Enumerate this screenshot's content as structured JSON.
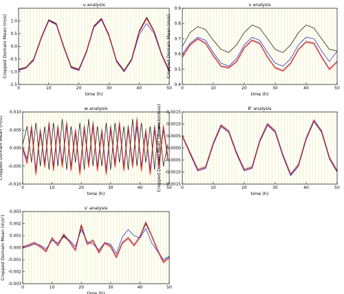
{
  "figure": {
    "x_grid_step": 1,
    "line_colors": [
      "#000000",
      "#3333cc",
      "#cc2222",
      "#cc2222",
      "#cc2222"
    ],
    "band_colors": [
      "#c8c8c8",
      "#ff9999"
    ],
    "grid_color": "#e8e890"
  },
  "chart_data": [
    {
      "type": "line",
      "title": "u analysis",
      "xlabel": "time (h)",
      "ylabel": "Cropped Domain Mean (m/s)",
      "xlim": [
        0,
        50
      ],
      "ylim": [
        -1.5,
        1.5
      ],
      "xticks": [
        "0",
        "10",
        "20",
        "30",
        "40",
        "50"
      ],
      "yticks": [
        "-1.5",
        "-1.0",
        "-0.5",
        "0.0",
        "0.5",
        "1.0"
      ],
      "series": [
        {
          "x": [
            0,
            2.5,
            5,
            7.5,
            10,
            12.5,
            15,
            17.5,
            20,
            22.5,
            25,
            27.5,
            30,
            32.5,
            35,
            37.5,
            40,
            42.5,
            45,
            47.5,
            50
          ],
          "values": [
            -0.9,
            -0.82,
            -0.5,
            0.35,
            1.05,
            0.9,
            0.0,
            -0.8,
            -0.9,
            -0.2,
            0.8,
            1.1,
            0.45,
            -0.55,
            -0.95,
            -0.5,
            0.6,
            1.15,
            0.6,
            -0.3,
            -0.95
          ]
        },
        {
          "x": [
            0,
            2.5,
            5,
            7.5,
            10,
            12.5,
            15,
            17.5,
            20,
            22.5,
            25,
            27.5,
            30,
            32.5,
            35,
            37.5,
            40,
            42.5,
            45,
            47.5,
            50
          ],
          "values": [
            -0.95,
            -0.85,
            -0.55,
            0.3,
            1.0,
            0.85,
            -0.05,
            -0.85,
            -0.95,
            -0.25,
            0.75,
            1.05,
            0.4,
            -0.6,
            -1.0,
            -0.55,
            0.45,
            0.9,
            0.5,
            -0.35,
            -1.0
          ]
        },
        {
          "x": [
            0,
            2.5,
            5,
            7.5,
            10,
            12.5,
            15,
            17.5,
            20,
            22.5,
            25,
            27.5,
            30,
            32.5,
            35,
            37.5,
            40,
            42.5,
            45,
            47.5,
            50
          ],
          "values": [
            -0.92,
            -0.83,
            -0.52,
            0.33,
            1.03,
            0.88,
            -0.02,
            -0.82,
            -0.92,
            -0.22,
            0.78,
            1.08,
            0.43,
            -0.57,
            -0.97,
            -0.52,
            0.56,
            1.1,
            0.58,
            -0.32,
            -0.97
          ]
        }
      ]
    },
    {
      "type": "line",
      "title": "v analysis",
      "xlabel": "time (h)",
      "ylabel": "Cropped Domain Mean (m/s)",
      "xlim": [
        0,
        50
      ],
      "ylim": [
        0.4,
        0.9
      ],
      "xticks": [
        "0",
        "10",
        "20",
        "30",
        "40",
        "50"
      ],
      "yticks": [
        "0.4",
        "0.5",
        "0.6",
        "0.7",
        "0.8",
        "0.9"
      ],
      "series": [
        {
          "x": [
            0,
            2.5,
            5,
            7.5,
            10,
            12.5,
            15,
            17.5,
            20,
            22.5,
            25,
            27.5,
            30,
            32.5,
            35,
            37.5,
            40,
            42.5,
            45,
            47.5,
            50
          ],
          "values": [
            0.65,
            0.74,
            0.78,
            0.76,
            0.69,
            0.63,
            0.61,
            0.66,
            0.74,
            0.79,
            0.77,
            0.7,
            0.63,
            0.61,
            0.66,
            0.74,
            0.79,
            0.77,
            0.7,
            0.63,
            0.62
          ]
        },
        {
          "x": [
            0,
            2.5,
            5,
            7.5,
            10,
            12.5,
            15,
            17.5,
            20,
            22.5,
            25,
            27.5,
            30,
            32.5,
            35,
            37.5,
            40,
            42.5,
            45,
            47.5,
            50
          ],
          "values": [
            0.6,
            0.67,
            0.71,
            0.69,
            0.61,
            0.54,
            0.52,
            0.57,
            0.66,
            0.71,
            0.69,
            0.61,
            0.54,
            0.52,
            0.57,
            0.66,
            0.71,
            0.7,
            0.62,
            0.55,
            0.62
          ]
        },
        {
          "x": [
            0,
            2.5,
            5,
            7.5,
            10,
            12.5,
            15,
            17.5,
            20,
            22.5,
            25,
            27.5,
            30,
            32.5,
            35,
            37.5,
            40,
            42.5,
            45,
            47.5,
            50
          ],
          "values": [
            0.58,
            0.66,
            0.7,
            0.67,
            0.59,
            0.52,
            0.51,
            0.55,
            0.64,
            0.69,
            0.67,
            0.58,
            0.51,
            0.49,
            0.54,
            0.63,
            0.68,
            0.67,
            0.58,
            0.5,
            0.55
          ]
        }
      ]
    },
    {
      "type": "line",
      "title": "w analysis",
      "xlabel": "time (h)",
      "ylabel": "Cropped Domain Mean (m/s)",
      "xlim": [
        0,
        50
      ],
      "ylim": [
        -0.01,
        0.01
      ],
      "xticks": [
        "0",
        "10",
        "20",
        "30",
        "40",
        "50"
      ],
      "yticks": [
        "-0.010",
        "-0.005",
        "0.000",
        "0.005",
        "0.010"
      ],
      "series": [
        {
          "x": [
            0,
            1.5,
            3,
            4.5,
            6,
            7.5,
            9,
            10.5,
            12,
            13.5,
            15,
            16.5,
            18,
            19.5,
            21,
            22.5,
            24,
            25.5,
            27,
            28.5,
            30,
            31.5,
            33,
            34.5,
            36,
            37.5,
            39,
            40.5,
            42,
            43.5,
            45,
            46.5,
            48,
            49.5
          ],
          "values": [
            0.001,
            0.006,
            -0.004,
            0.007,
            -0.005,
            0.006,
            -0.006,
            0.007,
            -0.005,
            0.008,
            -0.006,
            0.006,
            -0.004,
            0.007,
            -0.006,
            0.008,
            -0.005,
            0.006,
            -0.005,
            0.007,
            -0.006,
            0.007,
            -0.004,
            0.006,
            -0.006,
            0.008,
            -0.005,
            0.007,
            -0.004,
            0.006,
            -0.006,
            0.007,
            -0.005,
            0.001
          ]
        },
        {
          "x": [
            0,
            1.5,
            3,
            4.5,
            6,
            7.5,
            9,
            10.5,
            12,
            13.5,
            15,
            16.5,
            18,
            19.5,
            21,
            22.5,
            24,
            25.5,
            27,
            28.5,
            30,
            31.5,
            33,
            34.5,
            36,
            37.5,
            39,
            40.5,
            42,
            43.5,
            45,
            46.5,
            48,
            49.5
          ],
          "values": [
            0.0,
            -0.003,
            0.005,
            -0.006,
            0.004,
            -0.004,
            0.006,
            -0.005,
            0.005,
            -0.004,
            0.006,
            -0.005,
            0.004,
            -0.006,
            0.005,
            -0.004,
            0.006,
            -0.005,
            0.004,
            -0.006,
            0.005,
            -0.004,
            0.006,
            -0.005,
            0.005,
            -0.004,
            0.006,
            -0.005,
            0.004,
            -0.006,
            0.005,
            -0.004,
            0.005,
            -0.002
          ]
        },
        {
          "x": [
            0,
            1.5,
            3,
            4.5,
            6,
            7.5,
            9,
            10.5,
            12,
            13.5,
            15,
            16.5,
            18,
            19.5,
            21,
            22.5,
            24,
            25.5,
            27,
            28.5,
            30,
            31.5,
            33,
            34.5,
            36,
            37.5,
            39,
            40.5,
            42,
            43.5,
            45,
            46.5,
            48,
            49.5
          ],
          "values": [
            0.0,
            -0.004,
            0.006,
            -0.007,
            0.005,
            -0.005,
            0.007,
            -0.006,
            0.006,
            -0.005,
            0.007,
            -0.006,
            0.005,
            -0.007,
            0.006,
            -0.005,
            0.007,
            -0.006,
            0.005,
            -0.007,
            0.006,
            -0.005,
            0.007,
            -0.006,
            0.006,
            -0.005,
            0.008,
            -0.006,
            0.005,
            -0.007,
            0.006,
            -0.005,
            0.006,
            -0.003
          ]
        }
      ]
    },
    {
      "type": "line",
      "title": "θ' analysis",
      "xlabel": "time (h)",
      "ylabel": "Cropped Domain Mean (dimensionless)",
      "xlim": [
        0,
        50
      ],
      "ylim": [
        -0.0015,
        0.0015
      ],
      "xticks": [
        "0",
        "10",
        "20",
        "30",
        "40",
        "50"
      ],
      "yticks": [
        "-0.0015",
        "-0.0010",
        "-0.0005",
        "0.0000",
        "0.0005",
        "0.0010",
        "0.0015"
      ],
      "series": [
        {
          "x": [
            0,
            2.5,
            5,
            7.5,
            10,
            12.5,
            15,
            17.5,
            20,
            22.5,
            25,
            27.5,
            30,
            32.5,
            35,
            37.5,
            40,
            42.5,
            45,
            47.5,
            50
          ],
          "values": [
            0.0005,
            -0.0002,
            -0.0009,
            -0.0008,
            0.0002,
            0.00095,
            0.0007,
            -0.0002,
            -0.0009,
            -0.0008,
            0.0003,
            0.001,
            0.0007,
            -0.0003,
            -0.0011,
            -0.0007,
            0.0004,
            0.00115,
            0.0007,
            -0.0004,
            -0.00095
          ]
        },
        {
          "x": [
            0,
            2.5,
            5,
            7.5,
            10,
            12.5,
            15,
            17.5,
            20,
            22.5,
            25,
            27.5,
            30,
            32.5,
            35,
            37.5,
            40,
            42.5,
            45,
            47.5,
            50
          ],
          "values": [
            0.0005,
            -0.00025,
            -0.00095,
            -0.00085,
            0.00015,
            0.0009,
            0.00065,
            -0.00025,
            -0.00095,
            -0.00085,
            0.00025,
            0.00095,
            0.00065,
            -0.00035,
            -0.00115,
            -0.00075,
            0.00035,
            0.0011,
            0.00065,
            -0.00045,
            -0.001
          ]
        },
        {
          "x": [
            0,
            2.5,
            5,
            7.5,
            10,
            12.5,
            15,
            17.5,
            20,
            22.5,
            25,
            27.5,
            30,
            32.5,
            35,
            37.5,
            40,
            42.5,
            45,
            47.5,
            50
          ],
          "values": [
            0.0005,
            -0.0002,
            -0.0009,
            -0.0008,
            0.0002,
            0.00095,
            0.0007,
            -0.0002,
            -0.0009,
            -0.0008,
            0.0003,
            0.001,
            0.0007,
            -0.0003,
            -0.0011,
            -0.0007,
            0.0004,
            0.00115,
            0.0007,
            -0.0004,
            -0.00095
          ]
        }
      ]
    },
    {
      "type": "line",
      "title": "s' analysis",
      "xlabel": "time (h)",
      "ylabel": "Cropped Domain Mean (m/s²)",
      "xlim": [
        0,
        50
      ],
      "ylim": [
        -0.003,
        0.003
      ],
      "xticks": [
        "0",
        "10",
        "20",
        "30",
        "40",
        "50"
      ],
      "yticks": [
        "-0.003",
        "-0.002",
        "-0.001",
        "0.000",
        "0.001",
        "0.002",
        "0.003"
      ],
      "series": [
        {
          "x": [
            0,
            2,
            4,
            6,
            8,
            10,
            12,
            14,
            16,
            18,
            20,
            22,
            24,
            26,
            28,
            30,
            32,
            34,
            36,
            38,
            40,
            42,
            44,
            46,
            48,
            50
          ],
          "values": [
            0.0,
            0.0002,
            0.0004,
            0.0001,
            -0.0003,
            0.0008,
            0.0002,
            0.001,
            0.0005,
            -0.0002,
            0.0018,
            0.0003,
            0.0006,
            -0.0004,
            0.0004,
            0.0001,
            -0.0008,
            0.0004,
            0.0008,
            0.0002,
            0.0009,
            0.002,
            0.001,
            -0.0002,
            -0.0012,
            -0.0008
          ]
        },
        {
          "x": [
            0,
            2,
            4,
            6,
            8,
            10,
            12,
            14,
            16,
            18,
            20,
            22,
            24,
            26,
            28,
            30,
            32,
            34,
            36,
            38,
            40,
            42,
            44,
            46,
            48,
            50
          ],
          "values": [
            0.0001,
            0.0001,
            0.0003,
            0.0002,
            -0.0001,
            0.0006,
            0.0004,
            0.0009,
            0.0006,
            0.0001,
            0.0015,
            0.0005,
            0.0003,
            -0.0002,
            0.0004,
            0.0003,
            -0.0005,
            0.0009,
            0.0015,
            0.001,
            0.0008,
            0.0016,
            0.0004,
            -0.0003,
            -0.001,
            -0.0007
          ]
        },
        {
          "x": [
            0,
            2,
            4,
            6,
            8,
            10,
            12,
            14,
            16,
            18,
            20,
            22,
            24,
            26,
            28,
            30,
            32,
            34,
            36,
            38,
            40,
            42,
            44,
            46,
            48,
            50
          ],
          "values": [
            0.0,
            0.0002,
            0.0004,
            0.0001,
            -0.0003,
            0.0008,
            0.0002,
            0.0011,
            0.0005,
            -0.0002,
            0.0019,
            0.0003,
            0.0006,
            -0.0004,
            0.0004,
            0.0001,
            -0.0008,
            0.0004,
            0.0008,
            0.0002,
            0.0009,
            0.0021,
            0.001,
            -0.0002,
            -0.0012,
            -0.0008
          ]
        }
      ]
    }
  ]
}
